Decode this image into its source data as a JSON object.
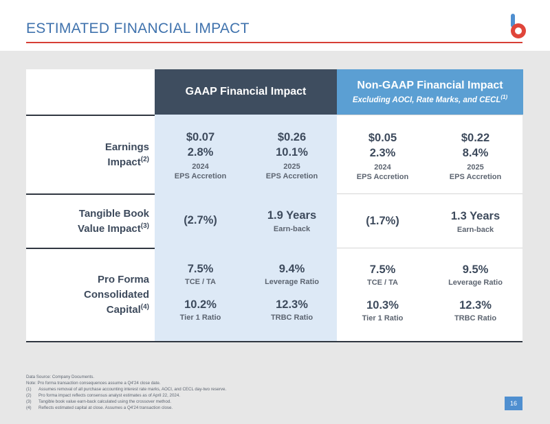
{
  "title": "ESTIMATED FINANCIAL IMPACT",
  "colors": {
    "accent_red": "#d63e35",
    "brand_blue": "#3f72ad",
    "gaap_header": "#3e4d5f",
    "nongaap_header": "#5b9fd3",
    "gaap_cell": "#dde9f6"
  },
  "logo": {
    "icon": "brand-b-logo-icon"
  },
  "headers": {
    "gaap": "GAAP Financial Impact",
    "nongaap": "Non-GAAP Financial Impact",
    "nongaap_sub": "Excluding AOCI, Rate Marks, and CECL",
    "nongaap_sub_note": "(1)"
  },
  "rows": {
    "earnings": {
      "label_line1": "Earnings",
      "label_line2": "Impact",
      "note": "(2)",
      "cells": [
        {
          "eps": "$0.07",
          "pct": "2.8%",
          "year": "2024",
          "caption": "EPS Accretion"
        },
        {
          "eps": "$0.26",
          "pct": "10.1%",
          "year": "2025",
          "caption": "EPS Accretion"
        },
        {
          "eps": "$0.05",
          "pct": "2.3%",
          "year": "2024",
          "caption": "EPS Accretion"
        },
        {
          "eps": "$0.22",
          "pct": "8.4%",
          "year": "2025",
          "caption": "EPS Accretion"
        }
      ]
    },
    "tbv": {
      "label_line1": "Tangible Book",
      "label_line2": "Value Impact",
      "note": "(3)",
      "gaap_dilution": "(2.7%)",
      "gaap_earnback": "1.9 Years",
      "nongaap_dilution": "(1.7%)",
      "nongaap_earnback": "1.3 Years",
      "earnback_caption": "Earn-back"
    },
    "capital": {
      "label_line1": "Pro Forma",
      "label_line2": "Consolidated",
      "label_line3": "Capital",
      "note": "(4)",
      "cells": [
        {
          "top_val": "7.5%",
          "top_cap": "TCE / TA",
          "bot_val": "10.2%",
          "bot_cap": "Tier 1 Ratio"
        },
        {
          "top_val": "9.4%",
          "top_cap": "Leverage Ratio",
          "bot_val": "12.3%",
          "bot_cap": "TRBC Ratio"
        },
        {
          "top_val": "7.5%",
          "top_cap": "TCE / TA",
          "bot_val": "10.3%",
          "bot_cap": "Tier 1 Ratio"
        },
        {
          "top_val": "9.5%",
          "top_cap": "Leverage Ratio",
          "bot_val": "12.3%",
          "bot_cap": "TRBC Ratio"
        }
      ]
    }
  },
  "notes": {
    "source": "Data Source: Company Documents.",
    "note_intro": "Note: Pro forma transaction consequences assume a Q4'24 close date.",
    "items": [
      {
        "k": "(1)",
        "t": "Assumes removal of all purchase accounting interest rate marks, AOCI, and CECL day-two reserve."
      },
      {
        "k": "(2)",
        "t": "Pro forma impact reflects consensus analyst estimates as of April 22, 2024."
      },
      {
        "k": "(3)",
        "t": "Tangible book value earn-back calculated using the crossover method."
      },
      {
        "k": "(4)",
        "t": "Reflects estimated capital at close. Assumes a Q4'24 transaction close."
      }
    ]
  },
  "page_number": "16"
}
